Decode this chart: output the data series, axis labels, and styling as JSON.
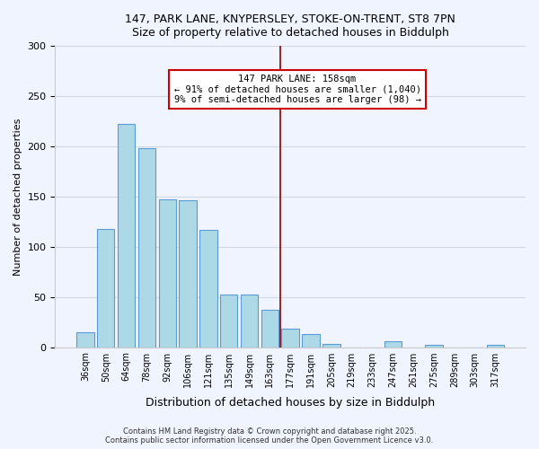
{
  "title1": "147, PARK LANE, KNYPERSLEY, STOKE-ON-TRENT, ST8 7PN",
  "title2": "Size of property relative to detached houses in Biddulph",
  "xlabel": "Distribution of detached houses by size in Biddulph",
  "ylabel": "Number of detached properties",
  "bar_labels": [
    "36sqm",
    "50sqm",
    "64sqm",
    "78sqm",
    "92sqm",
    "106sqm",
    "121sqm",
    "135sqm",
    "149sqm",
    "163sqm",
    "177sqm",
    "191sqm",
    "205sqm",
    "219sqm",
    "233sqm",
    "247sqm",
    "261sqm",
    "275sqm",
    "289sqm",
    "303sqm",
    "317sqm"
  ],
  "bar_values": [
    15,
    118,
    222,
    198,
    147,
    146,
    117,
    52,
    52,
    37,
    18,
    13,
    3,
    0,
    0,
    6,
    0,
    2,
    0,
    0,
    2
  ],
  "bar_color": "#add8e6",
  "bar_edge_color": "#5b9bd5",
  "vline_x": 9.5,
  "vline_color": "#8b0000",
  "annotation_line1": "147 PARK LANE: 158sqm",
  "annotation_line2": "← 91% of detached houses are smaller (1,040)",
  "annotation_line3": "9% of semi-detached houses are larger (98) →",
  "ylim": [
    0,
    300
  ],
  "yticks": [
    0,
    50,
    100,
    150,
    200,
    250,
    300
  ],
  "footer1": "Contains HM Land Registry data © Crown copyright and database right 2025.",
  "footer2": "Contains public sector information licensed under the Open Government Licence v3.0.",
  "bg_color": "#f0f4ff",
  "grid_color": "#d0d8e8"
}
